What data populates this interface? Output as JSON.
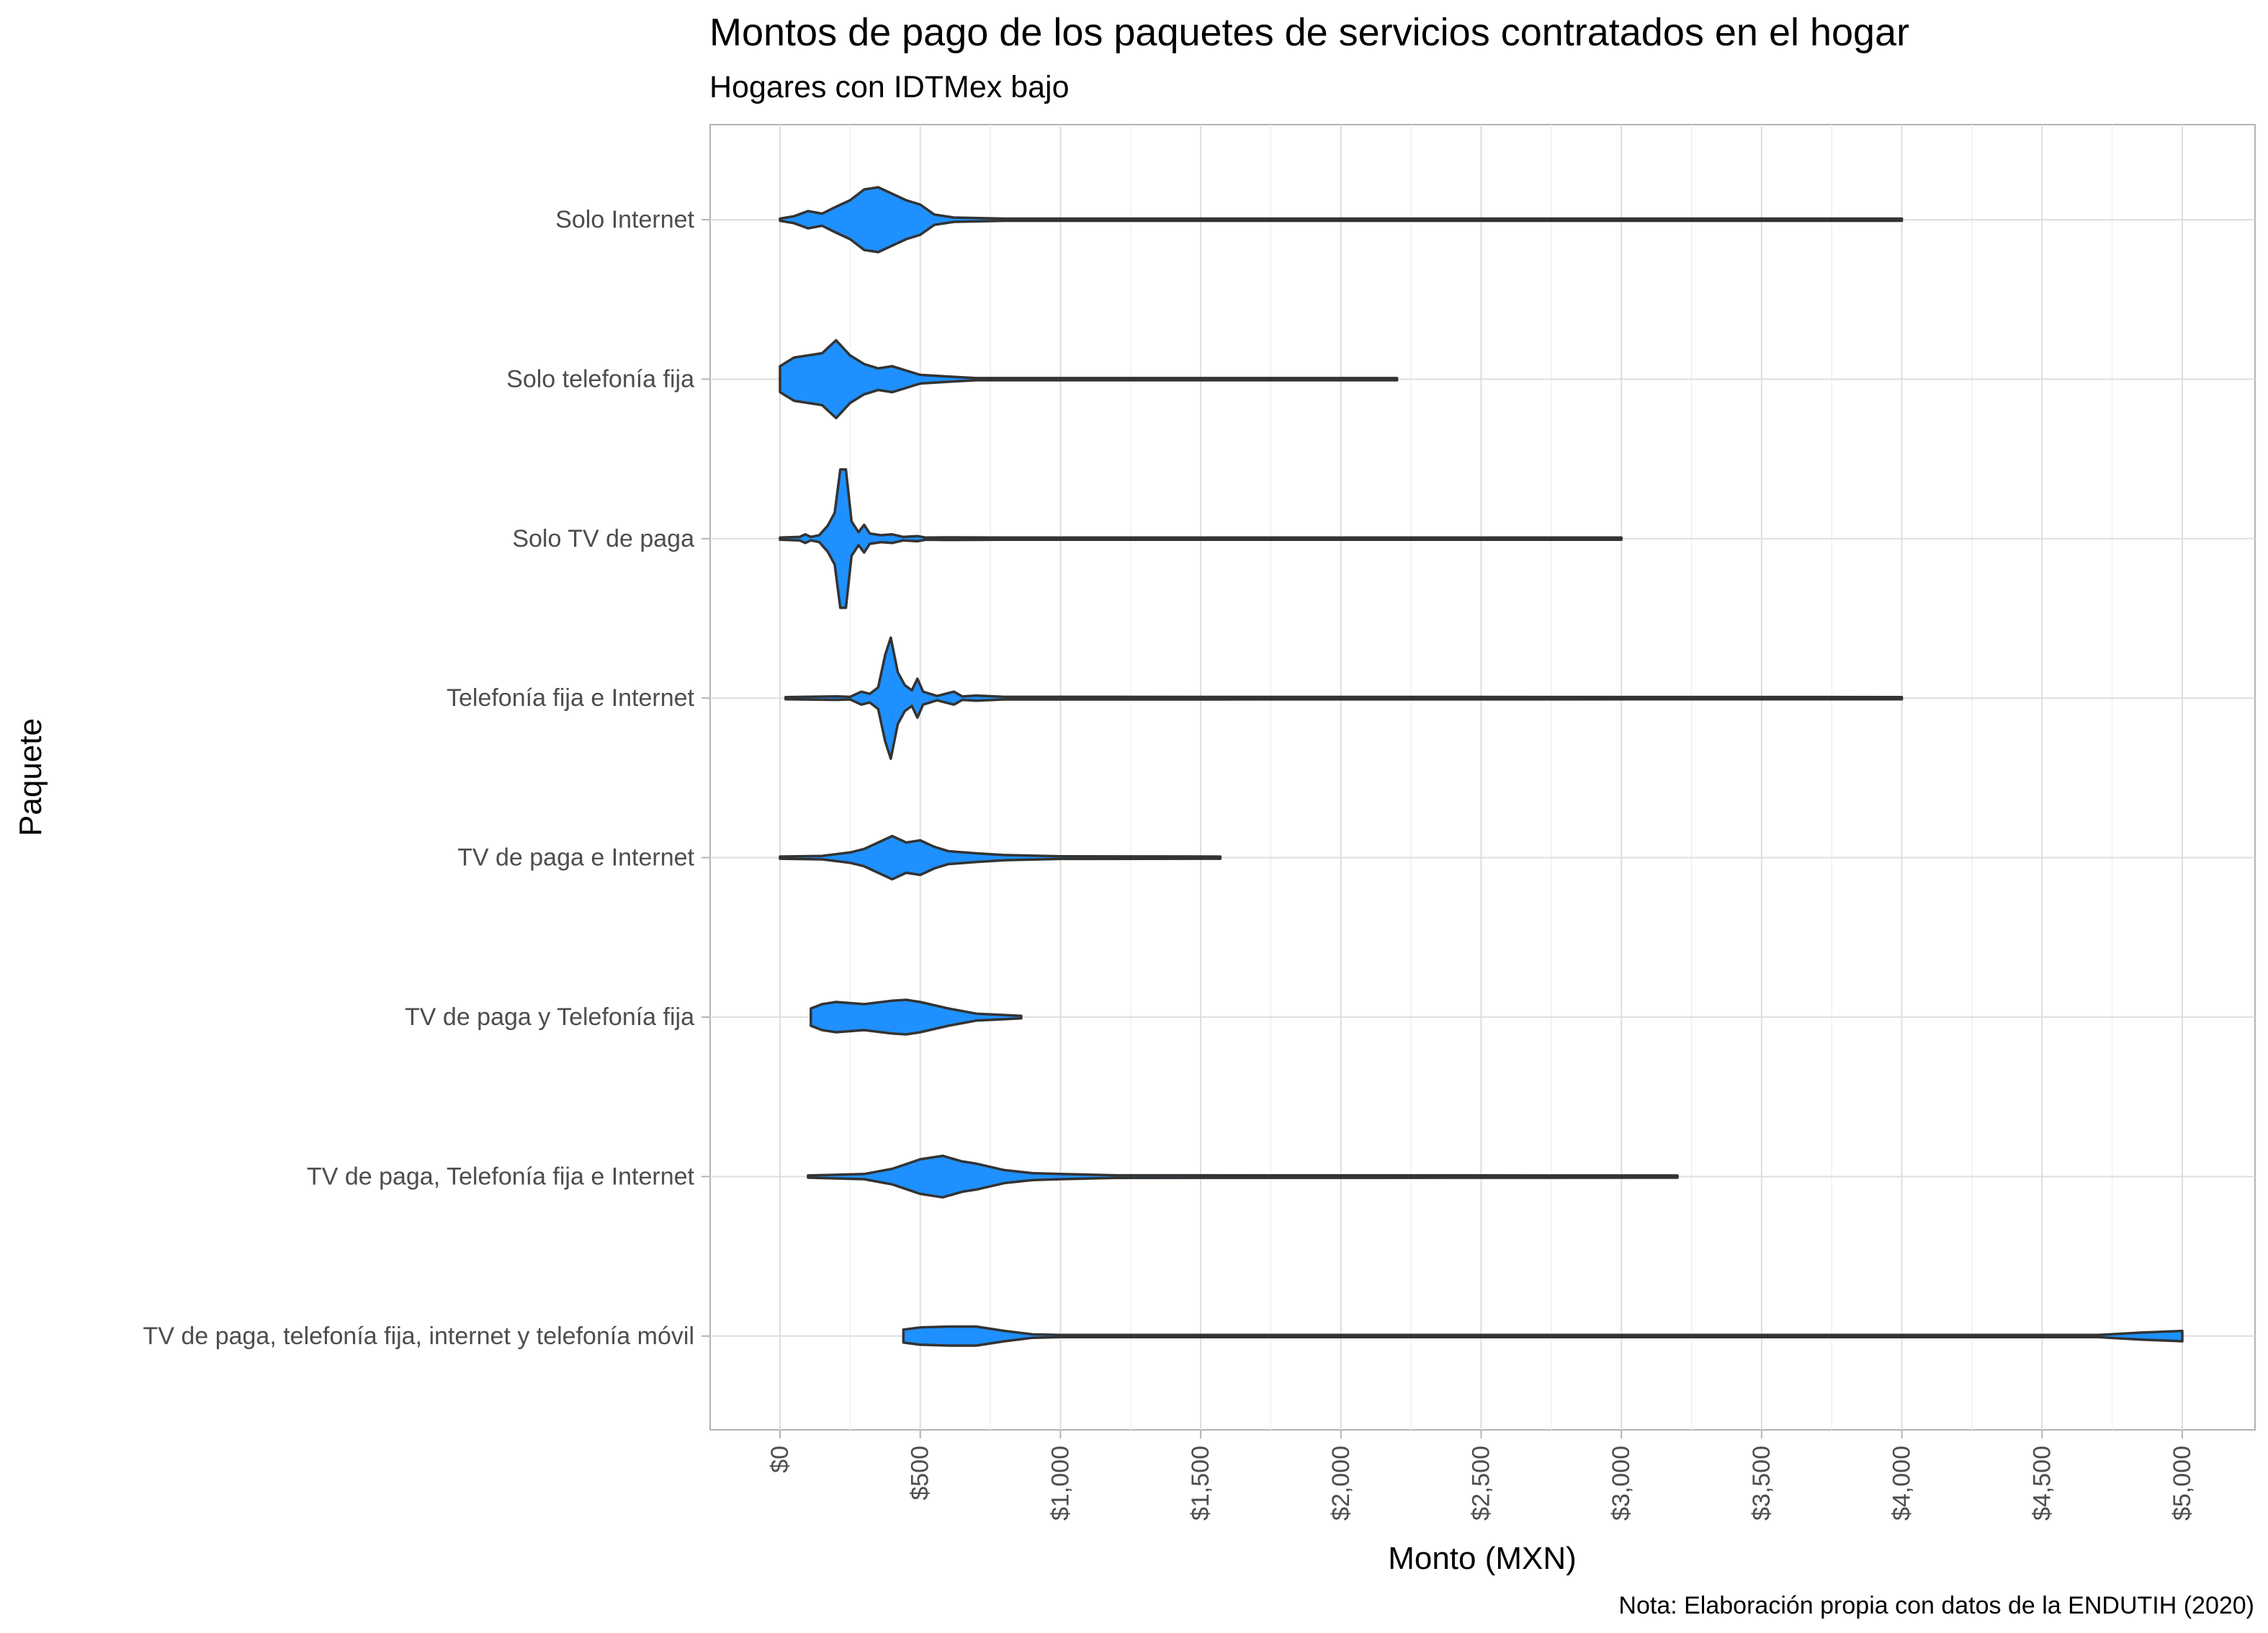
{
  "chart_data": {
    "type": "violin",
    "title": "Montos de pago de los paquetes de servicios contratados en el hogar",
    "subtitle": "Hogares con IDTMex bajo",
    "xlabel": "Monto (MXN)",
    "ylabel": "Paquete",
    "caption": "Nota: Elaboración propia con datos de la ENDUTIH (2020)",
    "xlim": [
      0,
      5000
    ],
    "x_ticks": [
      0,
      500,
      1000,
      1500,
      2000,
      2500,
      3000,
      3500,
      4000,
      4500,
      5000
    ],
    "x_tick_labels": [
      "$0",
      "$500",
      "$1,000",
      "$1,500",
      "$2,000",
      "$2,500",
      "$3,000",
      "$3,500",
      "$4,000",
      "$4,500",
      "$5,000"
    ],
    "grid": true,
    "fill_color": "#1e90ff",
    "outline_color": "#333333",
    "series": [
      {
        "category": "Solo Internet",
        "min": 0,
        "max": 4000,
        "density": [
          [
            0,
            0.02
          ],
          [
            50,
            0.08
          ],
          [
            100,
            0.2
          ],
          [
            150,
            0.14
          ],
          [
            200,
            0.3
          ],
          [
            250,
            0.45
          ],
          [
            300,
            0.7
          ],
          [
            350,
            0.75
          ],
          [
            400,
            0.6
          ],
          [
            450,
            0.45
          ],
          [
            500,
            0.35
          ],
          [
            550,
            0.12
          ],
          [
            620,
            0.05
          ],
          [
            800,
            0.02
          ],
          [
            4000,
            0.02
          ]
        ]
      },
      {
        "category": "Solo telefonía fija",
        "min": 0,
        "max": 2200,
        "density": [
          [
            0,
            0.3
          ],
          [
            50,
            0.5
          ],
          [
            100,
            0.55
          ],
          [
            150,
            0.6
          ],
          [
            200,
            0.9
          ],
          [
            250,
            0.55
          ],
          [
            300,
            0.35
          ],
          [
            350,
            0.25
          ],
          [
            400,
            0.3
          ],
          [
            450,
            0.2
          ],
          [
            500,
            0.1
          ],
          [
            600,
            0.06
          ],
          [
            700,
            0.02
          ],
          [
            2200,
            0.02
          ]
        ]
      },
      {
        "category": "Solo TV de paga",
        "min": 0,
        "max": 3000,
        "density": [
          [
            0,
            0.02
          ],
          [
            70,
            0.04
          ],
          [
            90,
            0.1
          ],
          [
            110,
            0.04
          ],
          [
            140,
            0.08
          ],
          [
            170,
            0.3
          ],
          [
            195,
            0.6
          ],
          [
            215,
            1.6
          ],
          [
            235,
            1.6
          ],
          [
            255,
            0.4
          ],
          [
            280,
            0.15
          ],
          [
            300,
            0.32
          ],
          [
            320,
            0.12
          ],
          [
            360,
            0.08
          ],
          [
            400,
            0.1
          ],
          [
            440,
            0.04
          ],
          [
            490,
            0.06
          ],
          [
            520,
            0.02
          ],
          [
            600,
            0.03
          ],
          [
            800,
            0.02
          ],
          [
            3000,
            0.02
          ]
        ]
      },
      {
        "category": "Telefonía fija e Internet",
        "min": 20,
        "max": 4000,
        "density": [
          [
            20,
            0.02
          ],
          [
            200,
            0.04
          ],
          [
            250,
            0.03
          ],
          [
            290,
            0.15
          ],
          [
            320,
            0.1
          ],
          [
            350,
            0.25
          ],
          [
            375,
            1.0
          ],
          [
            395,
            1.4
          ],
          [
            420,
            0.6
          ],
          [
            445,
            0.3
          ],
          [
            470,
            0.18
          ],
          [
            490,
            0.45
          ],
          [
            510,
            0.15
          ],
          [
            560,
            0.05
          ],
          [
            590,
            0.1
          ],
          [
            620,
            0.15
          ],
          [
            650,
            0.04
          ],
          [
            700,
            0.06
          ],
          [
            800,
            0.03
          ],
          [
            4000,
            0.02
          ]
        ]
      },
      {
        "category": "TV de paga e Internet",
        "min": 0,
        "max": 1570,
        "density": [
          [
            0,
            0.02
          ],
          [
            150,
            0.04
          ],
          [
            250,
            0.12
          ],
          [
            300,
            0.2
          ],
          [
            350,
            0.35
          ],
          [
            400,
            0.5
          ],
          [
            450,
            0.35
          ],
          [
            500,
            0.4
          ],
          [
            550,
            0.25
          ],
          [
            600,
            0.15
          ],
          [
            700,
            0.1
          ],
          [
            800,
            0.06
          ],
          [
            1000,
            0.03
          ],
          [
            1570,
            0.02
          ]
        ]
      },
      {
        "category": "TV de paga y Telefonía fija",
        "min": 110,
        "max": 860,
        "density": [
          [
            110,
            0.2
          ],
          [
            150,
            0.3
          ],
          [
            200,
            0.35
          ],
          [
            300,
            0.3
          ],
          [
            400,
            0.38
          ],
          [
            450,
            0.4
          ],
          [
            500,
            0.35
          ],
          [
            600,
            0.2
          ],
          [
            700,
            0.08
          ],
          [
            860,
            0.03
          ]
        ]
      },
      {
        "category": "TV de paga, Telefonía fija e Internet",
        "min": 100,
        "max": 3200,
        "density": [
          [
            100,
            0.02
          ],
          [
            300,
            0.06
          ],
          [
            350,
            0.12
          ],
          [
            400,
            0.18
          ],
          [
            500,
            0.4
          ],
          [
            580,
            0.48
          ],
          [
            650,
            0.35
          ],
          [
            700,
            0.3
          ],
          [
            800,
            0.15
          ],
          [
            900,
            0.08
          ],
          [
            1000,
            0.06
          ],
          [
            1200,
            0.03
          ],
          [
            3200,
            0.02
          ]
        ]
      },
      {
        "category": "TV de paga, telefonía fija, internet y telefonía móvil",
        "min": 440,
        "max": 5000,
        "density": [
          [
            440,
            0.15
          ],
          [
            500,
            0.2
          ],
          [
            600,
            0.22
          ],
          [
            700,
            0.22
          ],
          [
            800,
            0.12
          ],
          [
            900,
            0.04
          ],
          [
            1000,
            0.02
          ],
          [
            4700,
            0.02
          ],
          [
            4850,
            0.08
          ],
          [
            5000,
            0.12
          ]
        ]
      }
    ]
  }
}
